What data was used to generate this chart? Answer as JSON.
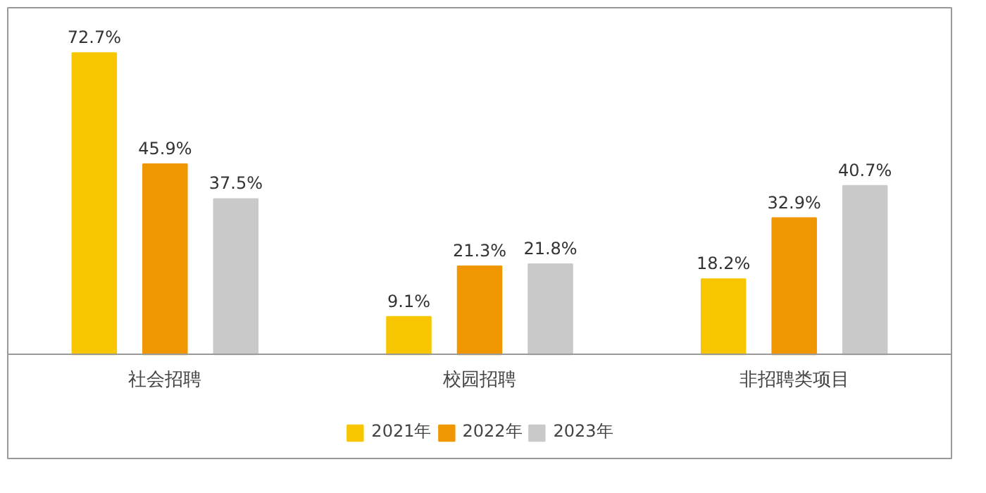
{
  "chart_data": {
    "type": "bar",
    "categories": [
      "社会招聘",
      "校园招聘",
      "非招聘类项目"
    ],
    "series": [
      {
        "name": "2021年",
        "color": "#f7c600",
        "values": [
          72.7,
          9.1,
          18.2
        ],
        "value_labels": [
          "72.7%",
          "9.1%",
          "18.2%"
        ]
      },
      {
        "name": "2022年",
        "color": "#ef9600",
        "values": [
          45.9,
          21.3,
          32.9
        ],
        "value_labels": [
          "45.9%",
          "21.3%",
          "32.9%"
        ]
      },
      {
        "name": "2023年",
        "color": "#c9c9c9",
        "values": [
          37.5,
          21.8,
          40.7
        ],
        "value_labels": [
          "37.5%",
          "21.8%",
          "40.7%"
        ]
      }
    ],
    "legend": "bottom"
  }
}
